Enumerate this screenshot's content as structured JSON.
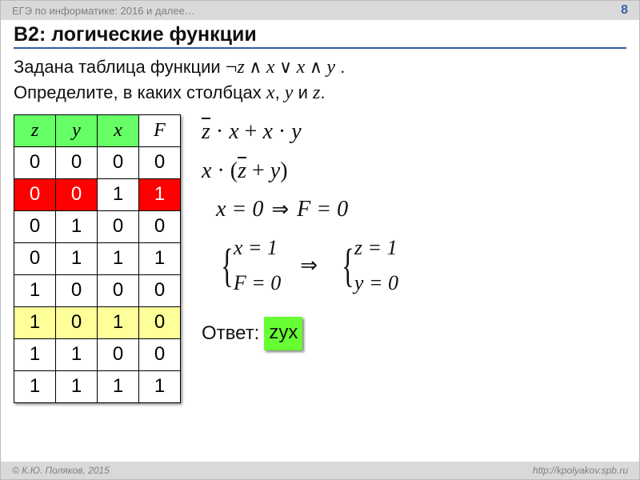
{
  "header": {
    "title": "ЕГЭ по информатике: 2016 и далее…",
    "page_number": "8"
  },
  "slide_title": "B2: логические функции",
  "task": {
    "line1_a": "Задана таблица функции  ",
    "expr": {
      "neg": "¬",
      "z": "z",
      "and1": " ∧ ",
      "x1": "x",
      "or": " ∨ ",
      "x2": "x",
      "and2": " ∧ ",
      "y": "y",
      "dot": " ."
    },
    "line2_a": "Определите, в каких столбцах ",
    "vars": {
      "x": "x",
      "c1": ", ",
      "y": "y",
      "c2": " и ",
      "z": "z",
      "dot": "."
    }
  },
  "truth_table": {
    "headers": {
      "c0": "z",
      "c1": "y",
      "c2": "x",
      "c3": "F"
    },
    "header_bg": [
      "hdr-green",
      "hdr-green",
      "hdr-green",
      "hdr-white"
    ],
    "rows": [
      {
        "cells": [
          "0",
          "0",
          "0",
          "0"
        ],
        "styles": [
          "cell-white",
          "cell-white",
          "cell-white",
          "cell-white"
        ]
      },
      {
        "cells": [
          "0",
          "0",
          "1",
          "1"
        ],
        "styles": [
          "cell-red",
          "cell-red",
          "cell-white",
          "cell-red"
        ]
      },
      {
        "cells": [
          "0",
          "1",
          "0",
          "0"
        ],
        "styles": [
          "cell-white",
          "cell-white",
          "cell-white",
          "cell-white"
        ]
      },
      {
        "cells": [
          "0",
          "1",
          "1",
          "1"
        ],
        "styles": [
          "cell-white",
          "cell-white",
          "cell-white",
          "cell-white"
        ]
      },
      {
        "cells": [
          "1",
          "0",
          "0",
          "0"
        ],
        "styles": [
          "cell-white",
          "cell-white",
          "cell-white",
          "cell-white"
        ]
      },
      {
        "cells": [
          "1",
          "0",
          "1",
          "0"
        ],
        "styles": [
          "cell-yellow",
          "cell-yellow",
          "cell-yellow",
          "cell-yellow"
        ]
      },
      {
        "cells": [
          "1",
          "1",
          "0",
          "0"
        ],
        "styles": [
          "cell-white",
          "cell-white",
          "cell-white",
          "cell-white"
        ]
      },
      {
        "cells": [
          "1",
          "1",
          "1",
          "1"
        ],
        "styles": [
          "cell-white",
          "cell-white",
          "cell-white",
          "cell-white"
        ]
      }
    ]
  },
  "math": {
    "l1": {
      "zbar": "z",
      "dot1": " · ",
      "x1": "x",
      "plus": " + ",
      "x2": "x",
      "dot2": " · ",
      "y": "y"
    },
    "l2": {
      "x": "x",
      "dot": " · ",
      "lp": "(",
      "zbar": "z",
      "plus": " + ",
      "y": "y",
      "rp": ")"
    },
    "l3": {
      "lhs": "x = 0",
      "arrow": "⇒",
      "rhs": "F = 0"
    },
    "sys1": {
      "a": "x = 1",
      "b": "F = 0"
    },
    "arrow2": "⇒",
    "sys2": {
      "a": "z = 1",
      "b": "y = 0"
    }
  },
  "answer": {
    "label": "Ответ:",
    "value": "zyx"
  },
  "footer": {
    "left": "© К.Ю. Поляков, 2015",
    "right": "http://kpolyakov.spb.ru"
  }
}
